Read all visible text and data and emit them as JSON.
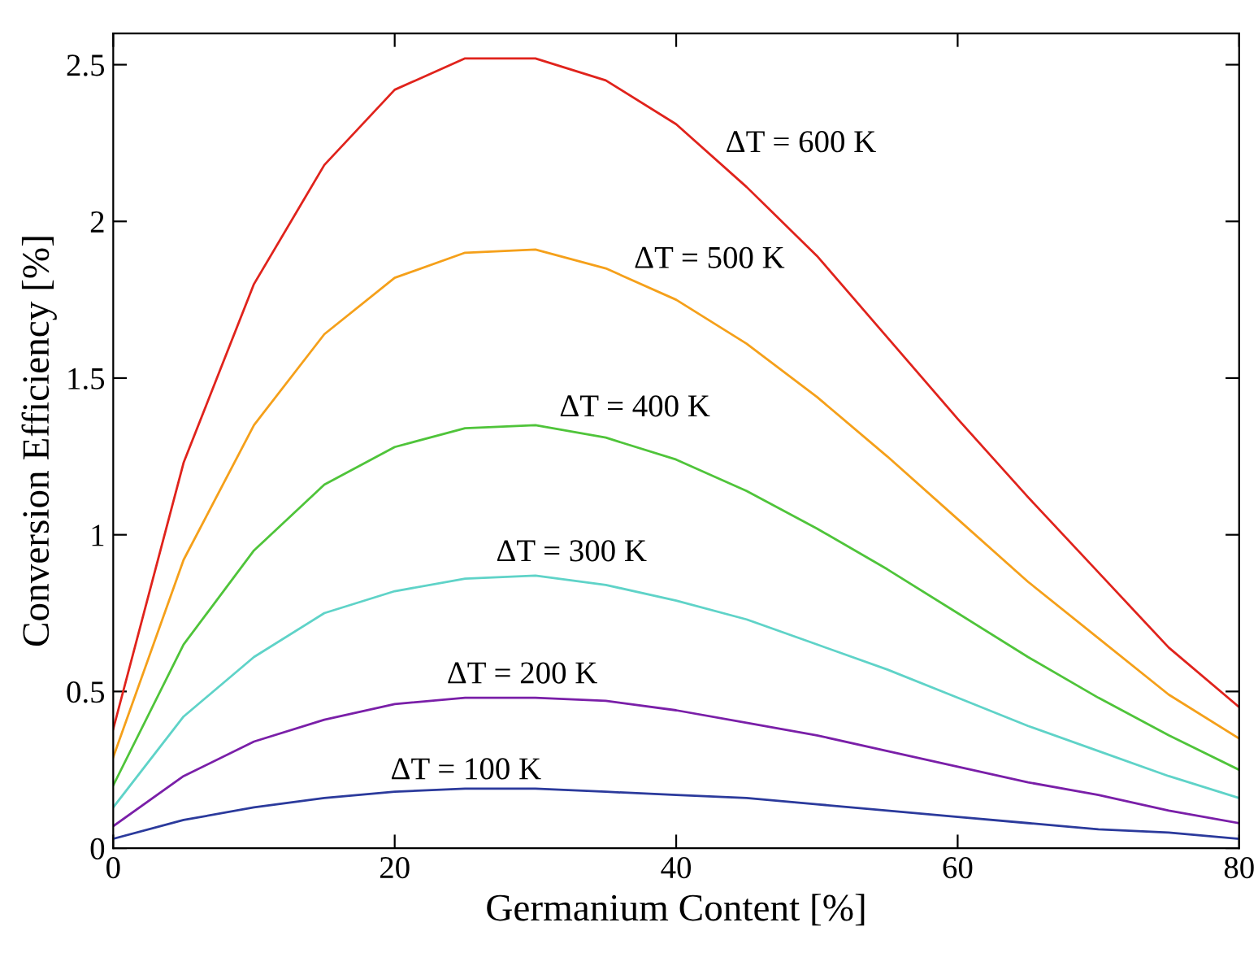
{
  "chart_data": {
    "type": "line",
    "xlabel": "Germanium Content [%]",
    "ylabel": "Conversion Efficiency [%]",
    "x": [
      0,
      5,
      10,
      15,
      20,
      25,
      30,
      35,
      40,
      45,
      50,
      55,
      60,
      65,
      70,
      75,
      80
    ],
    "series": [
      {
        "name": "ΔT = 100 K",
        "color": "#2b3a9c",
        "values": [
          0.03,
          0.09,
          0.13,
          0.16,
          0.18,
          0.19,
          0.19,
          0.18,
          0.17,
          0.16,
          0.14,
          0.12,
          0.1,
          0.08,
          0.06,
          0.05,
          0.03
        ]
      },
      {
        "name": "ΔT = 200 K",
        "color": "#7a1fa8",
        "values": [
          0.07,
          0.23,
          0.34,
          0.41,
          0.46,
          0.48,
          0.48,
          0.47,
          0.44,
          0.4,
          0.36,
          0.31,
          0.26,
          0.21,
          0.17,
          0.12,
          0.08
        ]
      },
      {
        "name": "ΔT = 300 K",
        "color": "#5fd3c8",
        "values": [
          0.13,
          0.42,
          0.61,
          0.75,
          0.82,
          0.86,
          0.87,
          0.84,
          0.79,
          0.73,
          0.65,
          0.57,
          0.48,
          0.39,
          0.31,
          0.23,
          0.16
        ]
      },
      {
        "name": "ΔT = 400 K",
        "color": "#4fc43a",
        "values": [
          0.2,
          0.65,
          0.95,
          1.16,
          1.28,
          1.34,
          1.35,
          1.31,
          1.24,
          1.14,
          1.02,
          0.89,
          0.75,
          0.61,
          0.48,
          0.36,
          0.25
        ]
      },
      {
        "name": "ΔT = 500 K",
        "color": "#f5a01a",
        "values": [
          0.29,
          0.92,
          1.35,
          1.64,
          1.82,
          1.9,
          1.91,
          1.85,
          1.75,
          1.61,
          1.44,
          1.25,
          1.05,
          0.85,
          0.67,
          0.49,
          0.35
        ]
      },
      {
        "name": "ΔT = 600 K",
        "color": "#e0231c",
        "values": [
          0.38,
          1.23,
          1.8,
          2.18,
          2.42,
          2.52,
          2.52,
          2.45,
          2.31,
          2.11,
          1.89,
          1.63,
          1.37,
          1.12,
          0.88,
          0.64,
          0.45
        ]
      }
    ],
    "xlim": [
      0,
      80
    ],
    "xticks": [
      0,
      20,
      40,
      60,
      80
    ],
    "ylim": [
      0,
      2.6
    ],
    "yticks": [
      0,
      0.5,
      1,
      1.5,
      2,
      2.5
    ],
    "grid": false,
    "legend": false,
    "marker": "none",
    "line_style": "solid"
  }
}
